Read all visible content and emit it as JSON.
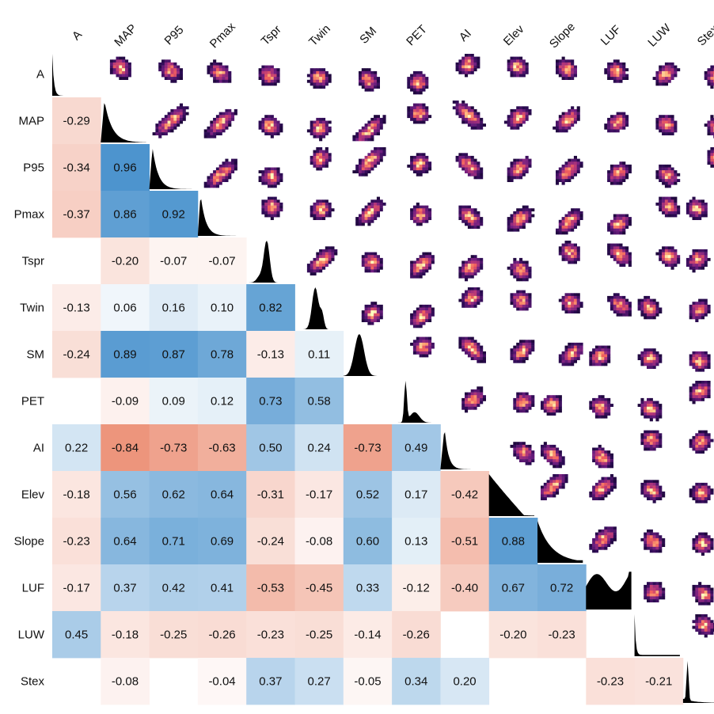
{
  "chart_data": {
    "type": "heatmap",
    "variables": [
      "A",
      "MAP",
      "P95",
      "Pmax",
      "Tspr",
      "Twin",
      "SM",
      "PET",
      "AI",
      "Elev",
      "Slope",
      "LUF",
      "LUW",
      "Stex"
    ],
    "lower_triangle": "pearson correlation coefficients (blank cell = not shown)",
    "diagonal": "marginal density histogram of each variable",
    "upper_triangle": "2D density heatmaps of variable pairs",
    "correlations": [
      [],
      [
        -0.29
      ],
      [
        -0.34,
        0.96
      ],
      [
        -0.37,
        0.86,
        0.92
      ],
      [
        null,
        -0.2,
        -0.07,
        -0.07
      ],
      [
        -0.13,
        0.06,
        0.16,
        0.1,
        0.82
      ],
      [
        -0.24,
        0.89,
        0.87,
        0.78,
        -0.13,
        0.11
      ],
      [
        null,
        -0.09,
        0.09,
        0.12,
        0.73,
        0.58,
        null
      ],
      [
        0.22,
        -0.84,
        -0.73,
        -0.63,
        0.5,
        0.24,
        -0.73,
        0.49
      ],
      [
        -0.18,
        0.56,
        0.62,
        0.64,
        -0.31,
        -0.17,
        0.52,
        0.17,
        -0.42
      ],
      [
        -0.23,
        0.64,
        0.71,
        0.69,
        -0.24,
        -0.08,
        0.6,
        0.13,
        -0.51,
        0.88
      ],
      [
        -0.17,
        0.37,
        0.42,
        0.41,
        -0.53,
        -0.45,
        0.33,
        -0.12,
        -0.4,
        0.67,
        0.72
      ],
      [
        0.45,
        -0.18,
        -0.25,
        -0.26,
        -0.23,
        -0.25,
        -0.14,
        -0.26,
        null,
        -0.2,
        -0.23,
        null
      ],
      [
        null,
        -0.08,
        null,
        -0.04,
        0.37,
        0.27,
        -0.05,
        0.34,
        0.2,
        null,
        null,
        -0.23,
        -0.21
      ]
    ],
    "colors": {
      "positive": "#3a89c9",
      "negative": "#e8795a",
      "neutral": "#ffffff",
      "density_fill": "#000000",
      "density_palette": [
        "#000004",
        "#2c0b54",
        "#721f81",
        "#b73779",
        "#f1605d",
        "#feb078",
        "#fcfdbf"
      ]
    }
  }
}
